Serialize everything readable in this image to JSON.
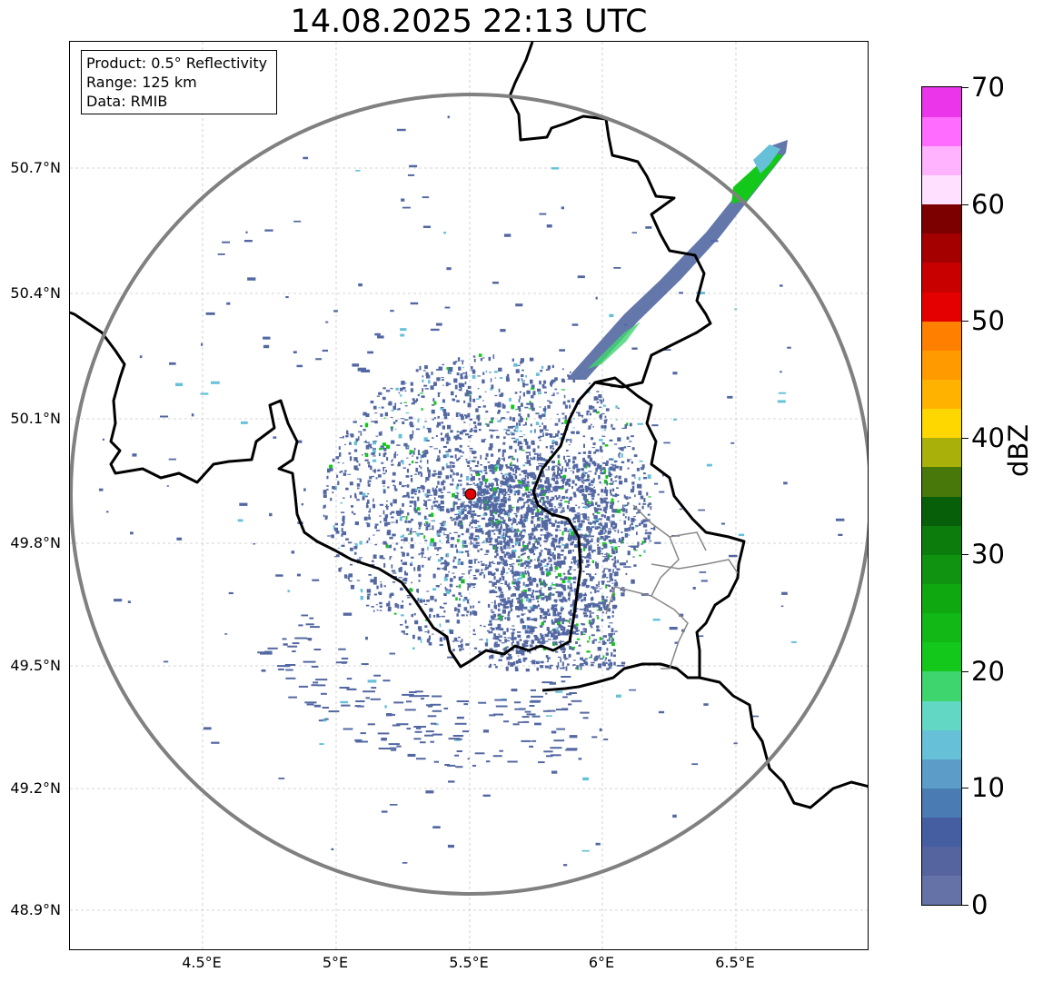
{
  "title": "14.08.2025 22:13 UTC",
  "info": {
    "product": "Product: 0.5° Reflectivity",
    "range": "Range: 125 km",
    "source": "Data: RMIB"
  },
  "axes": {
    "lat_labels": [
      "50.7°N",
      "50.4°N",
      "50.1°N",
      "49.8°N",
      "49.5°N",
      "49.2°N",
      "48.9°N"
    ],
    "lon_labels": [
      "4.5°E",
      "5°E",
      "5.5°E",
      "6°E",
      "6.5°E"
    ],
    "grid": true
  },
  "colorbar": {
    "label": "dBZ",
    "ticks": [
      "0",
      "10",
      "20",
      "30",
      "40",
      "50",
      "60",
      "70"
    ],
    "colors": [
      "#6472a8",
      "#55649e",
      "#445ea1",
      "#4a7cb3",
      "#5b9cc8",
      "#66c1d8",
      "#62d8c4",
      "#3ed46e",
      "#13c81a",
      "#11b816",
      "#0fa810",
      "#0f9310",
      "#0c7c0c",
      "#075f09",
      "#48780a",
      "#a9b00a",
      "#ffd700",
      "#ffb300",
      "#ff9a00",
      "#ff7f00",
      "#e50000",
      "#c80000",
      "#a50000",
      "#7c0000",
      "#ffe1ff",
      "#ffb3ff",
      "#ff6cff",
      "#ea35ea"
    ]
  },
  "radar": {
    "site_color": "#e00000",
    "range_ring_color": "#808080",
    "echo_main_color": "#5368a2",
    "echo_light_color": "#66c1d8",
    "echo_strong_color": "#13c81a"
  }
}
